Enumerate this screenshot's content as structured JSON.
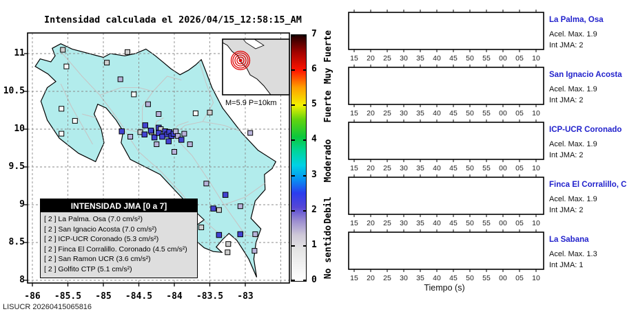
{
  "watermark": "LISUCR 20260415065816",
  "chart_data": [
    {
      "type": "scatter",
      "title": "Intensidad calculada el 2026/04/15_12:58:15_AM",
      "x_ticks": [
        "-86",
        "-85.5",
        "-85",
        "-84.5",
        "-84",
        "-83.5",
        "-83"
      ],
      "y_ticks": [
        "11",
        "10.5",
        "10",
        "9.5",
        "9",
        "8.5",
        "8"
      ],
      "xlim": [
        -86.07,
        -82.38
      ],
      "ylim": [
        7.96,
        11.27
      ],
      "grid": "dashed",
      "land_color": "#b2ecec",
      "road_color": "#c6c6c6",
      "event": {
        "label": "M=5.9 P=10km",
        "magnitude": 5.9,
        "depth_km": 10,
        "epicenter_color": "#e00000"
      },
      "legend": {
        "title": "INTENSIDAD JMA [0 a 7]",
        "entries": [
          "[ 2 ]  La Palma. Osa (7.0 cm/s²)",
          "[ 2 ]  San Ignacio Acosta (7.0 cm/s²)",
          "[ 2 ]  ICP-UCR Coronado (5.3 cm/s²)",
          "[ 2 ]  Finca El Corralillo. Coronado (4.5 cm/s²)",
          "[ 2 ]  San Ramon UCR (3.6 cm/s²)",
          "[ 2 ]  Golfito CTP (5.1 cm/s²)"
        ]
      },
      "colorbar": {
        "ticks": [
          "0",
          "1",
          "2",
          "3",
          "4",
          "5",
          "6",
          "7"
        ],
        "range": [
          0,
          7
        ],
        "labels": [
          {
            "text": "No sentido",
            "value": 0.8
          },
          {
            "text": "Debil",
            "value": 2.0
          },
          {
            "text": "Moderado",
            "value": 3.4
          },
          {
            "text": "Fuerte",
            "value": 4.95
          },
          {
            "text": "Muy Fuerte",
            "value": 6.35
          }
        ],
        "stops": [
          [
            0,
            "#ffffff"
          ],
          [
            0.9,
            "#e4e4e4"
          ],
          [
            1.3,
            "#cfc9d8"
          ],
          [
            1.7,
            "#9d8fd0"
          ],
          [
            2.1,
            "#5546d6"
          ],
          [
            2.5,
            "#2b3cee"
          ],
          [
            2.9,
            "#0693f2"
          ],
          [
            3.3,
            "#00d2e4"
          ],
          [
            3.7,
            "#00d59a"
          ],
          [
            4.1,
            "#0cc73c"
          ],
          [
            4.6,
            "#63d40e"
          ],
          [
            5.0,
            "#f2f200"
          ],
          [
            5.5,
            "#ffa000"
          ],
          [
            6.0,
            "#ff1400"
          ],
          [
            6.5,
            "#a30300"
          ],
          [
            7,
            "#1f0000"
          ]
        ]
      },
      "marker_colors": [
        "#fbfbfb",
        "#cfcfcf",
        "#b9b3da",
        "#4343d2"
      ],
      "stations": [
        [
          -85.57,
          11.05,
          1
        ],
        [
          -84.66,
          11.02,
          1
        ],
        [
          -85.52,
          10.83,
          0
        ],
        [
          -84.95,
          10.88,
          1
        ],
        [
          -84.76,
          10.66,
          2
        ],
        [
          -84.57,
          10.46,
          0
        ],
        [
          -84.37,
          10.33,
          2
        ],
        [
          -84.22,
          10.2,
          2
        ],
        [
          -85.59,
          10.27,
          0
        ],
        [
          -85.4,
          10.11,
          0
        ],
        [
          -85.59,
          9.94,
          0
        ],
        [
          -83.5,
          10.22,
          1
        ],
        [
          -83.7,
          10.21,
          0
        ],
        [
          -82.93,
          9.95,
          2
        ],
        [
          -84.41,
          10.05,
          3
        ],
        [
          -84.22,
          10.02,
          3
        ],
        [
          -84.48,
          9.96,
          1
        ],
        [
          -84.32,
          9.96,
          1
        ],
        [
          -84.19,
          10.0,
          1
        ],
        [
          -84.42,
          9.93,
          3
        ],
        [
          -84.33,
          9.98,
          3
        ],
        [
          -84.28,
          9.89,
          3
        ],
        [
          -84.22,
          9.95,
          3
        ],
        [
          -84.17,
          9.9,
          3
        ],
        [
          -84.13,
          9.97,
          3
        ],
        [
          -84.1,
          9.93,
          3
        ],
        [
          -84.07,
          9.96,
          3
        ],
        [
          -84.04,
          9.91,
          3
        ],
        [
          -84.01,
          9.94,
          3
        ],
        [
          -83.98,
          9.97,
          2
        ],
        [
          -83.95,
          9.91,
          2
        ],
        [
          -84.08,
          9.84,
          3
        ],
        [
          -84.25,
          9.8,
          2
        ],
        [
          -83.9,
          9.86,
          3
        ],
        [
          -83.86,
          9.94,
          2
        ],
        [
          -84.74,
          9.97,
          3
        ],
        [
          -84.62,
          9.9,
          2
        ],
        [
          -83.78,
          9.8,
          2
        ],
        [
          -84.0,
          9.7,
          2
        ],
        [
          -83.55,
          9.28,
          2
        ],
        [
          -83.28,
          9.13,
          3
        ],
        [
          -83.07,
          8.98,
          2
        ],
        [
          -83.45,
          8.95,
          3
        ],
        [
          -83.37,
          8.93,
          1
        ],
        [
          -83.62,
          8.7,
          1
        ],
        [
          -83.37,
          8.6,
          3
        ],
        [
          -83.07,
          8.61,
          3
        ],
        [
          -82.86,
          8.61,
          2
        ],
        [
          -83.24,
          8.48,
          1
        ],
        [
          -83.25,
          8.37,
          1
        ],
        [
          -82.87,
          8.39,
          2
        ]
      ]
    },
    {
      "type": "line",
      "xlabel": "Tiempo (s)",
      "x_ticks": [
        "15",
        "20",
        "25",
        "30",
        "35",
        "40",
        "45",
        "50",
        "55",
        "00",
        "05",
        "10"
      ],
      "panels": [
        {
          "station": "La Palma, Osa",
          "acel_max": "Acel. Max. 1.9",
          "int_jma": "Int JMA: 2",
          "color": "#156f15",
          "onset": "late",
          "seed": 7
        },
        {
          "station": "San Ignacio Acosta",
          "acel_max": "Acel. Max. 1.9",
          "int_jma": "Int JMA: 2",
          "color": "#156f15",
          "onset": "decay",
          "seed": 13
        },
        {
          "station": "ICP-UCR Coronado",
          "acel_max": "Acel. Max. 1.9",
          "int_jma": "Int JMA: 2",
          "color": "#156f15",
          "onset": "decay",
          "seed": 29
        },
        {
          "station": "Finca El Corralillo, Coro",
          "acel_max": "Acel. Max. 1.9",
          "int_jma": "Int JMA: 2",
          "color": "#156f15",
          "onset": "decay",
          "seed": 41
        },
        {
          "station": "La Sabana",
          "acel_max": "Acel. Max. 1.3",
          "int_jma": "Int JMA: 1",
          "color": "#ffa216",
          "onset": "sustained",
          "seed": 57
        }
      ]
    }
  ],
  "map_geometry": {
    "coast": [
      [
        -85.72,
        11.07
      ],
      [
        -85.6,
        11.13
      ],
      [
        -85.44,
        11.06
      ],
      [
        -85.2,
        11.0
      ],
      [
        -85.0,
        10.95
      ],
      [
        -84.9,
        11.0
      ],
      [
        -84.7,
        10.97
      ],
      [
        -84.55,
        11.0
      ],
      [
        -84.4,
        11.06
      ],
      [
        -84.28,
        10.98
      ],
      [
        -84.15,
        10.88
      ],
      [
        -84.05,
        10.8
      ],
      [
        -83.92,
        10.72
      ],
      [
        -83.8,
        10.78
      ],
      [
        -83.7,
        10.85
      ],
      [
        -83.62,
        10.92
      ],
      [
        -83.55,
        10.75
      ],
      [
        -83.47,
        10.55
      ],
      [
        -83.32,
        10.28
      ],
      [
        -83.05,
        9.95
      ],
      [
        -82.82,
        9.72
      ],
      [
        -82.57,
        9.57
      ],
      [
        -82.62,
        9.48
      ],
      [
        -82.73,
        9.4
      ],
      [
        -82.72,
        9.2
      ],
      [
        -82.86,
        9.05
      ],
      [
        -82.92,
        8.82
      ],
      [
        -82.78,
        8.68
      ],
      [
        -82.85,
        8.5
      ],
      [
        -82.88,
        8.28
      ],
      [
        -82.84,
        8.04
      ],
      [
        -82.95,
        8.28
      ],
      [
        -83.03,
        8.4
      ],
      [
        -83.12,
        8.53
      ],
      [
        -83.23,
        8.62
      ],
      [
        -83.32,
        8.54
      ],
      [
        -83.41,
        8.44
      ],
      [
        -83.33,
        8.37
      ],
      [
        -83.45,
        8.38
      ],
      [
        -83.58,
        8.43
      ],
      [
        -83.74,
        8.56
      ],
      [
        -83.7,
        8.72
      ],
      [
        -83.58,
        8.8
      ],
      [
        -83.75,
        8.95
      ],
      [
        -83.95,
        9.15
      ],
      [
        -84.2,
        9.4
      ],
      [
        -84.62,
        9.6
      ],
      [
        -84.75,
        9.82
      ],
      [
        -84.72,
        9.97
      ],
      [
        -84.82,
        10.12
      ],
      [
        -84.96,
        10.28
      ],
      [
        -85.08,
        10.33
      ],
      [
        -85.13,
        10.2
      ],
      [
        -85.03,
        10.0
      ],
      [
        -84.99,
        9.82
      ],
      [
        -85.11,
        9.57
      ],
      [
        -85.35,
        9.68
      ],
      [
        -85.62,
        9.88
      ],
      [
        -85.79,
        10.12
      ],
      [
        -85.88,
        10.37
      ],
      [
        -85.79,
        10.55
      ],
      [
        -85.67,
        10.63
      ],
      [
        -85.78,
        10.73
      ],
      [
        -85.96,
        10.83
      ],
      [
        -85.89,
        10.93
      ],
      [
        -85.74,
        10.89
      ],
      [
        -85.68,
        10.97
      ]
    ],
    "roads": [
      [
        [
          -85.62,
          11.05
        ],
        [
          -85.3,
          10.7
        ],
        [
          -85.05,
          10.45
        ],
        [
          -84.85,
          10.2
        ],
        [
          -84.7,
          10.0
        ],
        [
          -84.45,
          9.95
        ],
        [
          -84.2,
          9.93
        ],
        [
          -84.0,
          9.9
        ],
        [
          -83.75,
          9.65
        ],
        [
          -83.5,
          9.3
        ],
        [
          -83.3,
          9.0
        ],
        [
          -83.0,
          8.6
        ],
        [
          -82.75,
          8.55
        ]
      ],
      [
        [
          -84.0,
          9.93
        ],
        [
          -83.85,
          10.05
        ],
        [
          -83.6,
          10.1
        ],
        [
          -83.3,
          10.05
        ],
        [
          -83.0,
          9.95
        ]
      ],
      [
        [
          -84.45,
          9.95
        ],
        [
          -84.45,
          10.3
        ],
        [
          -84.3,
          10.5
        ],
        [
          -84.1,
          10.7
        ],
        [
          -83.9,
          10.65
        ]
      ],
      [
        [
          -85.05,
          10.45
        ],
        [
          -84.75,
          10.55
        ],
        [
          -84.5,
          10.55
        ],
        [
          -84.3,
          10.5
        ]
      ],
      [
        [
          -85.6,
          10.6
        ],
        [
          -85.45,
          10.3
        ],
        [
          -85.3,
          10.05
        ],
        [
          -85.15,
          9.8
        ]
      ],
      [
        [
          -84.7,
          9.98
        ],
        [
          -84.5,
          9.7
        ],
        [
          -84.2,
          9.45
        ],
        [
          -83.9,
          9.15
        ],
        [
          -83.65,
          8.85
        ],
        [
          -83.35,
          8.6
        ],
        [
          -83.1,
          8.55
        ]
      ],
      [
        [
          -83.6,
          10.1
        ],
        [
          -83.45,
          10.35
        ],
        [
          -83.55,
          10.6
        ],
        [
          -83.65,
          10.9
        ]
      ],
      [
        [
          -84.85,
          10.2
        ],
        [
          -85.1,
          10.15
        ],
        [
          -85.3,
          10.2
        ]
      ],
      [
        [
          -83.3,
          9.0
        ],
        [
          -83.0,
          9.1
        ],
        [
          -82.7,
          9.3
        ]
      ],
      [
        [
          -84.3,
          9.96
        ],
        [
          -84.25,
          10.1
        ],
        [
          -84.15,
          10.15
        ]
      ],
      [
        [
          -84.05,
          9.92
        ],
        [
          -83.95,
          10.05
        ],
        [
          -83.8,
          10.1
        ]
      ]
    ],
    "inset_land": [
      [
        0,
        0
      ],
      [
        97,
        0
      ],
      [
        97,
        81
      ],
      [
        70,
        81
      ],
      [
        60,
        68
      ],
      [
        50,
        58
      ],
      [
        40,
        52
      ],
      [
        35,
        42
      ],
      [
        27,
        34
      ],
      [
        22,
        24
      ],
      [
        14,
        18
      ],
      [
        7,
        9
      ],
      [
        0,
        5
      ]
    ],
    "inset_lake": [
      [
        30,
        0
      ],
      [
        46,
        0
      ],
      [
        60,
        9
      ],
      [
        48,
        14
      ],
      [
        34,
        5
      ]
    ],
    "inset_epicenter": [
      26,
      31
    ]
  }
}
